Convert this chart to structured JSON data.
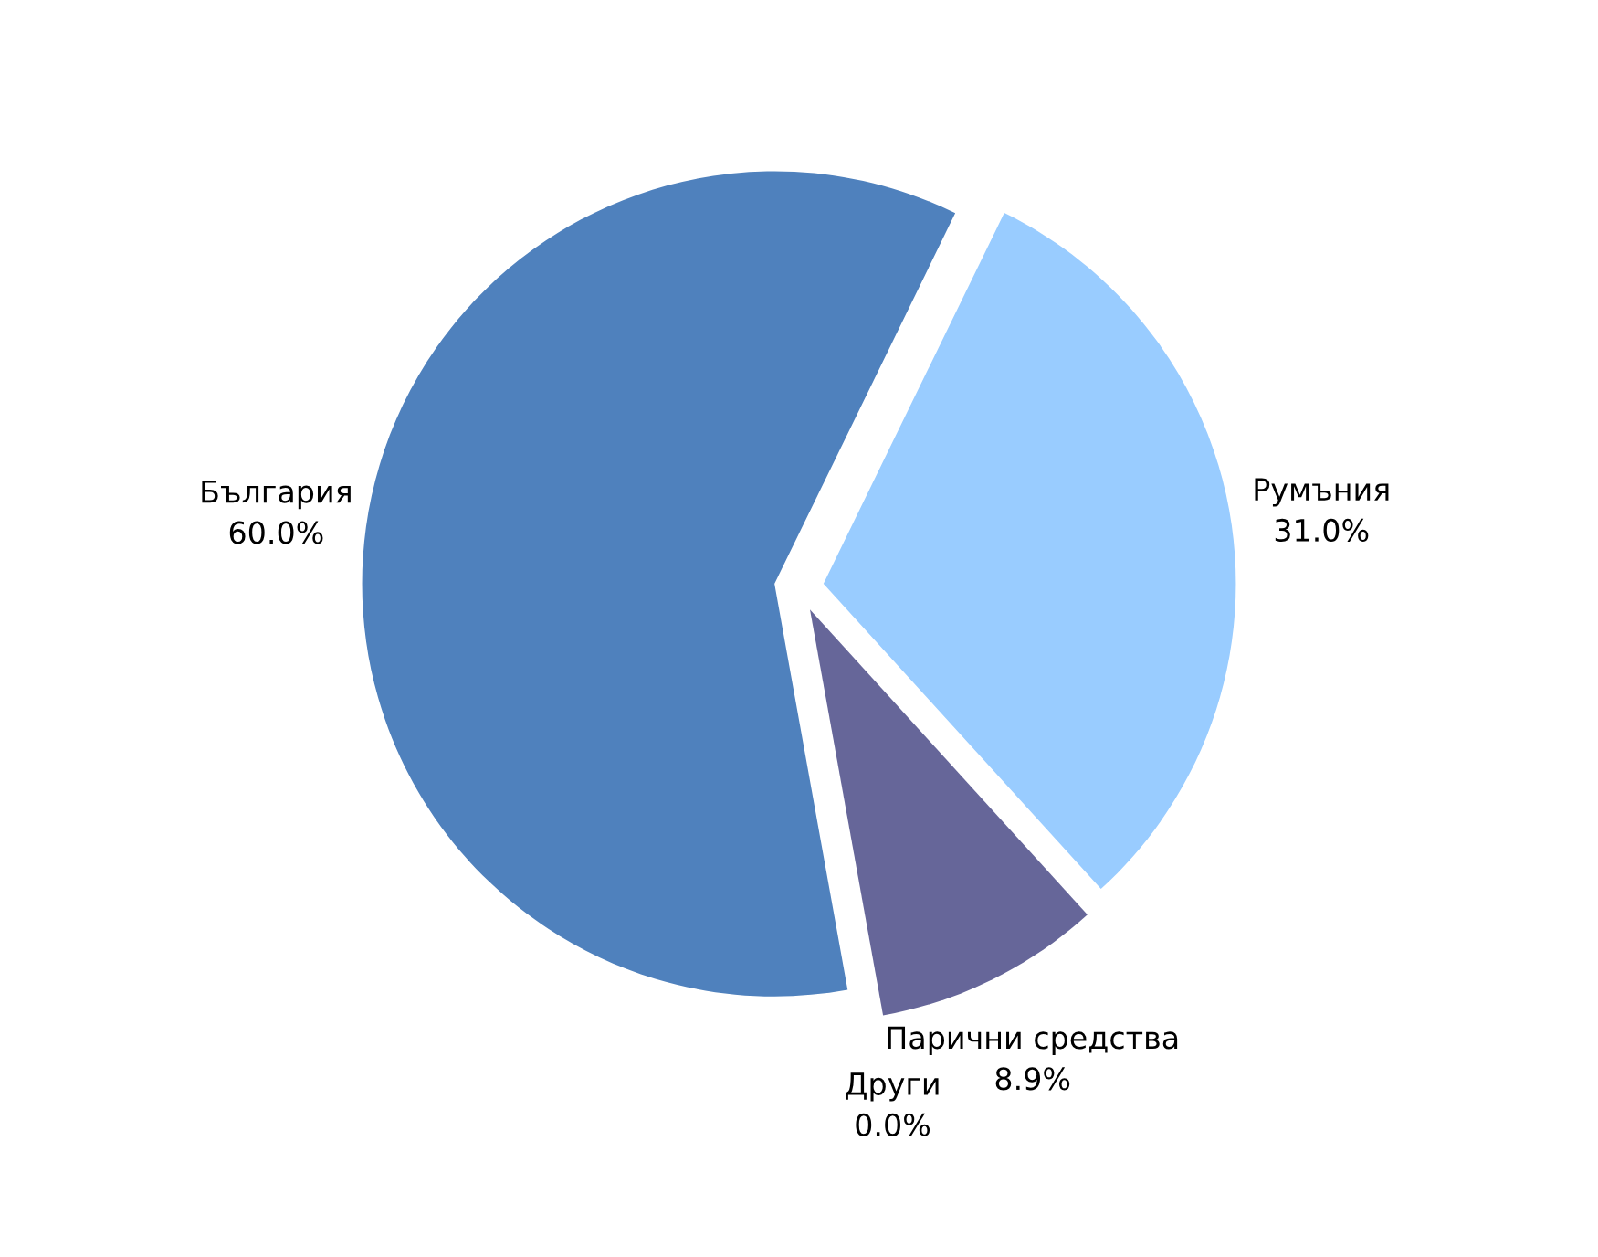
{
  "chart_data": {
    "type": "pie",
    "categories": [
      "Румъния",
      "Парични средства",
      "Други",
      "България"
    ],
    "values": [
      31.0,
      8.9,
      0.0,
      60.0
    ],
    "colors": [
      "#99ccff",
      "#666699",
      "#8064a2",
      "#4f81bd"
    ],
    "value_labels": [
      "31.0%",
      "8.9%",
      "0.0%",
      "60.0%"
    ],
    "legend": false
  }
}
